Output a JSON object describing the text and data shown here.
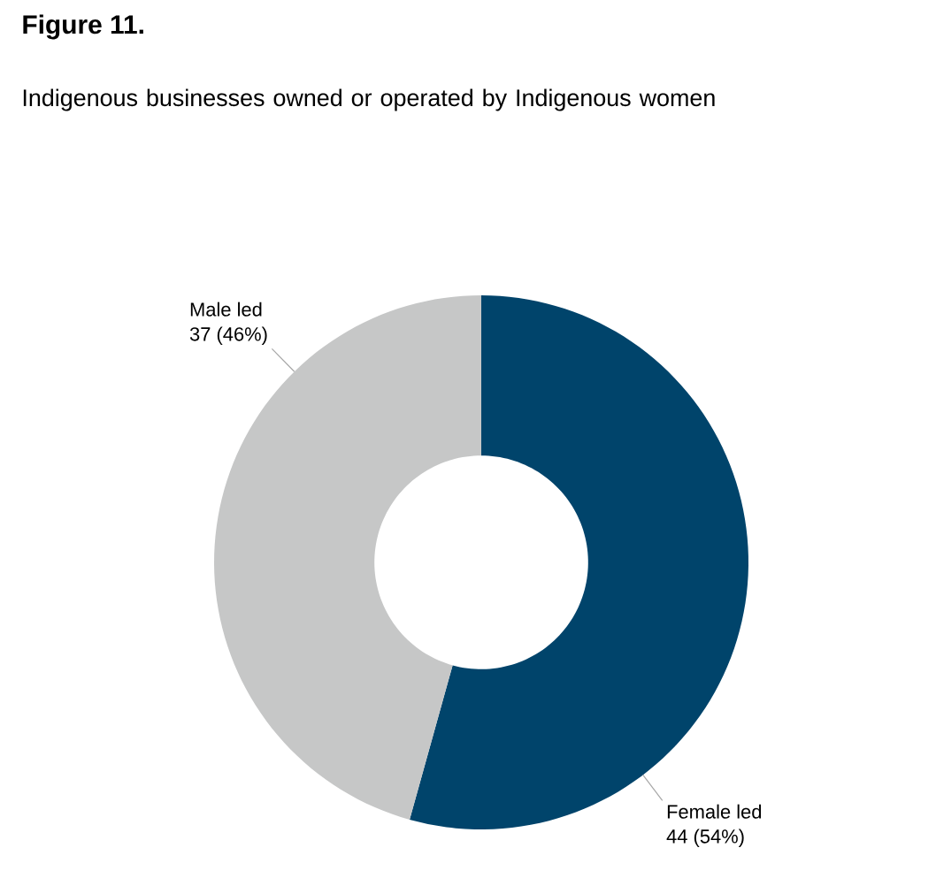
{
  "chart_data": {
    "type": "donut",
    "title": "Figure 11.",
    "subtitle": "Indigenous businesses owned or operated by Indigenous women",
    "categories": [
      "Female led",
      "Male led"
    ],
    "values": [
      44,
      37
    ],
    "value_labels": [
      "44 (54%)",
      "37 (46%)"
    ],
    "colors": [
      "#00446b",
      "#c6c7c7"
    ]
  }
}
